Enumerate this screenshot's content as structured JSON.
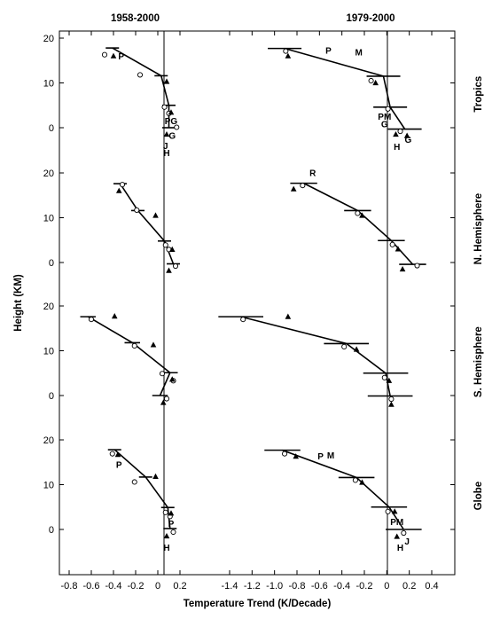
{
  "chart_data": {
    "type": "line",
    "xlabel": "Temperature Trend (K/Decade)",
    "ylabel": "Height (KM)",
    "columns": [
      {
        "label": "1958-2000",
        "xlim": [
          -0.9,
          0.2
        ],
        "xticks": [
          -0.8,
          -0.6,
          -0.4,
          -0.2,
          0,
          0.2
        ],
        "xtick_labels": [
          "-0.8",
          "-0.6",
          "-0.4",
          "-0.2",
          "0",
          "0.2"
        ]
      },
      {
        "label": "1979-2000",
        "xlim": [
          -1.5,
          0.5
        ],
        "xticks": [
          -1.4,
          -1.2,
          -1.0,
          -0.8,
          -0.6,
          -0.4,
          -0.2,
          0,
          0.2,
          0.4
        ],
        "xtick_labels": [
          "-1.4",
          "-1.2",
          "-1.0",
          "-0.8",
          "-0.6",
          "-0.4",
          "-0.2",
          "0",
          "0.2",
          "0.4"
        ]
      }
    ],
    "row_ylim": [
      -5,
      20
    ],
    "yticks": [
      0,
      10,
      20
    ],
    "ytick_labels": [
      "0",
      "10",
      "20"
    ],
    "panels": [
      {
        "row": "Tropics",
        "column": "1958-2000",
        "model": [
          [
            -0.41,
            17.8
          ],
          [
            0.03,
            11.6
          ],
          [
            0.1,
            5.0
          ],
          [
            0.1,
            0
          ]
        ],
        "model_bar_halfwidth": 0.06,
        "obs_circles": [
          [
            -0.48,
            16.3
          ],
          [
            -0.16,
            11.8
          ],
          [
            0.06,
            4.6
          ],
          [
            0.1,
            3.2
          ],
          [
            0.17,
            0.1
          ]
        ],
        "obs_triangles": [
          [
            -0.4,
            16.0
          ],
          [
            0.08,
            10.3
          ],
          [
            0.12,
            3.4
          ],
          [
            0.08,
            -1.5
          ]
        ],
        "letters": [
          {
            "text": "P",
            "x": -0.33,
            "y": 16.0
          },
          {
            "text": "PG",
            "x": 0.12,
            "y": 1.6
          },
          {
            "text": "G",
            "x": 0.13,
            "y": -1.7
          },
          {
            "text": "J",
            "x": 0.07,
            "y": -4.0
          },
          {
            "text": "H",
            "x": 0.08,
            "y": -5.5
          }
        ]
      },
      {
        "row": "N. Hemisphere",
        "column": "1958-2000",
        "model": [
          [
            -0.34,
            17.6
          ],
          [
            -0.18,
            11.6
          ],
          [
            0.06,
            4.8
          ],
          [
            0.14,
            -0.3
          ]
        ],
        "model_bar_halfwidth": 0.06,
        "obs_circles": [
          [
            -0.32,
            17.4
          ],
          [
            -0.19,
            11.7
          ],
          [
            0.07,
            3.9
          ],
          [
            0.1,
            2.9
          ],
          [
            0.16,
            -0.8
          ]
        ],
        "obs_triangles": [
          [
            -0.35,
            16.0
          ],
          [
            -0.02,
            10.5
          ],
          [
            0.13,
            2.9
          ],
          [
            0.1,
            -1.8
          ]
        ],
        "letters": []
      },
      {
        "row": "S. Hemisphere",
        "column": "1958-2000",
        "model": [
          [
            -0.63,
            17.6
          ],
          [
            -0.23,
            11.8
          ],
          [
            0.11,
            5.1
          ],
          [
            0.02,
            0
          ]
        ],
        "model_bar_halfwidth": 0.07,
        "obs_circles": [
          [
            -0.6,
            17.0
          ],
          [
            -0.21,
            11.1
          ],
          [
            0.04,
            4.9
          ],
          [
            0.14,
            3.3
          ],
          [
            0.08,
            -0.7
          ]
        ],
        "obs_triangles": [
          [
            -0.39,
            17.7
          ],
          [
            -0.04,
            11.3
          ],
          [
            0.13,
            3.6
          ],
          [
            0.05,
            -1.6
          ]
        ],
        "letters": []
      },
      {
        "row": "Globe",
        "column": "1958-2000",
        "model": [
          [
            -0.39,
            17.8
          ],
          [
            -0.11,
            11.7
          ],
          [
            0.09,
            4.9
          ],
          [
            0.11,
            0.2
          ]
        ],
        "model_bar_halfwidth": 0.06,
        "obs_circles": [
          [
            -0.41,
            16.9
          ],
          [
            -0.21,
            10.6
          ],
          [
            0.07,
            3.8
          ],
          [
            0.11,
            2.9
          ],
          [
            0.14,
            -0.6
          ]
        ],
        "obs_triangles": [
          [
            -0.36,
            16.7
          ],
          [
            -0.02,
            11.8
          ],
          [
            0.12,
            3.6
          ],
          [
            0.08,
            -1.5
          ]
        ],
        "letters": [
          {
            "text": "P",
            "x": -0.35,
            "y": 14.6
          },
          {
            "text": "P",
            "x": 0.12,
            "y": 1.4
          },
          {
            "text": "H",
            "x": 0.08,
            "y": -4.0
          }
        ]
      },
      {
        "row": "Tropics",
        "column": "1979-2000",
        "model": [
          [
            -0.91,
            17.7
          ],
          [
            -0.03,
            11.5
          ],
          [
            0.03,
            4.6
          ],
          [
            0.16,
            -0.3
          ]
        ],
        "model_bar_halfwidth": 0.15,
        "obs_circles": [
          [
            -0.9,
            17.1
          ],
          [
            -0.14,
            10.5
          ],
          [
            0.01,
            4.2
          ],
          [
            0.12,
            -0.8
          ]
        ],
        "obs_triangles": [
          [
            -0.88,
            16.0
          ],
          [
            -0.1,
            10.0
          ],
          [
            0.08,
            -1.5
          ],
          [
            0.18,
            -1.8
          ]
        ],
        "letters": [
          {
            "text": "P",
            "x": -0.52,
            "y": 17.3
          },
          {
            "text": "M",
            "x": -0.25,
            "y": 16.9
          },
          {
            "text": "PM",
            "x": -0.02,
            "y": 2.6
          },
          {
            "text": "G",
            "x": -0.02,
            "y": 0.9
          },
          {
            "text": "H",
            "x": 0.09,
            "y": -4.2
          },
          {
            "text": "G",
            "x": 0.19,
            "y": -2.6
          }
        ]
      },
      {
        "row": "N. Hemisphere",
        "column": "1979-2000",
        "model": [
          [
            -0.74,
            17.7
          ],
          [
            -0.26,
            11.6
          ],
          [
            0.04,
            4.9
          ],
          [
            0.23,
            -0.4
          ]
        ],
        "model_bar_halfwidth": 0.12,
        "obs_circles": [
          [
            -0.75,
            17.2
          ],
          [
            -0.26,
            11.0
          ],
          [
            0.05,
            4.0
          ],
          [
            0.27,
            -0.7
          ]
        ],
        "obs_triangles": [
          [
            -0.83,
            16.4
          ],
          [
            -0.22,
            10.5
          ],
          [
            0.1,
            3.0
          ],
          [
            0.14,
            -1.5
          ]
        ],
        "letters": [
          {
            "text": "R",
            "x": -0.66,
            "y": 20.1
          }
        ]
      },
      {
        "row": "S. Hemisphere",
        "column": "1979-2000",
        "model": [
          [
            -1.3,
            17.6
          ],
          [
            -0.36,
            11.6
          ],
          [
            -0.01,
            5.0
          ],
          [
            0.03,
            -0.1
          ]
        ],
        "model_bar_halfwidth": 0.2,
        "obs_circles": [
          [
            -1.28,
            17.0
          ],
          [
            -0.38,
            10.9
          ],
          [
            -0.02,
            4.0
          ],
          [
            0.04,
            -0.8
          ]
        ],
        "obs_triangles": [
          [
            -0.88,
            17.6
          ],
          [
            -0.27,
            10.3
          ],
          [
            0.02,
            3.3
          ],
          [
            0.04,
            -2.0
          ]
        ],
        "letters": []
      },
      {
        "row": "Globe",
        "column": "1979-2000",
        "model": [
          [
            -0.93,
            17.7
          ],
          [
            -0.27,
            11.6
          ],
          [
            0.02,
            5.0
          ],
          [
            0.15,
            0
          ]
        ],
        "model_bar_halfwidth": 0.16,
        "obs_circles": [
          [
            -0.91,
            16.9
          ],
          [
            -0.28,
            11.0
          ],
          [
            0.01,
            4.0
          ],
          [
            0.15,
            -0.8
          ]
        ],
        "obs_triangles": [
          [
            -0.81,
            16.3
          ],
          [
            -0.22,
            10.5
          ],
          [
            0.07,
            4.0
          ],
          [
            0.09,
            -1.6
          ]
        ],
        "letters": [
          {
            "text": "P",
            "x": -0.59,
            "y": 16.4
          },
          {
            "text": "M",
            "x": -0.5,
            "y": 16.6
          },
          {
            "text": "PM",
            "x": 0.09,
            "y": 1.8
          },
          {
            "text": "J",
            "x": 0.18,
            "y": -2.6
          },
          {
            "text": "H",
            "x": 0.12,
            "y": -4.0
          }
        ]
      }
    ],
    "row_labels": [
      "Tropics",
      "N. Hemisphere",
      "S. Hemisphere",
      "Globe"
    ],
    "legend": "none",
    "grid": false
  }
}
